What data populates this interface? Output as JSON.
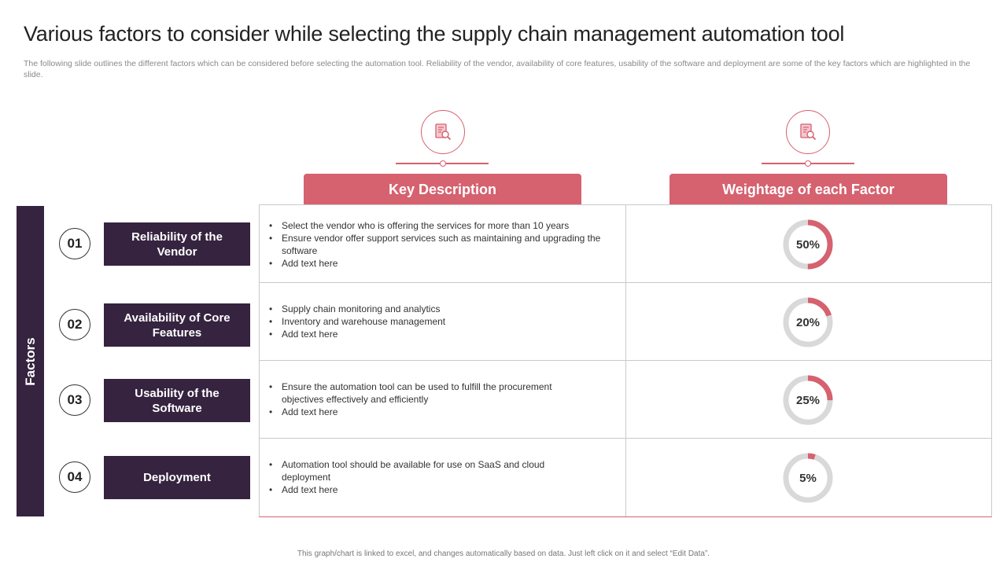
{
  "title": "Various factors to consider while selecting the supply chain management automation tool",
  "subtitle": "The following slide outlines the different factors which can be considered before selecting the automation tool. Reliability of the vendor, availability of core features, usability of the software and deployment are some of the key factors which are highlighted in the slide.",
  "side_label": "Factors",
  "headers": {
    "description": "Key Description",
    "weightage": "Weightage of each Factor",
    "icon": "document-search-icon"
  },
  "colors": {
    "accent": "#d6616f",
    "dark": "#35233f",
    "ring": "#d9d9d9"
  },
  "factors": [
    {
      "number": "01",
      "name": "Reliability of the Vendor",
      "bullets": [
        "Select the vendor  who is offering  the services for more than  10 years",
        "Ensure vendor  offer  support services  such as maintaining and upgrading the software",
        "Add text here"
      ],
      "weight_label": "50%",
      "weight": 50
    },
    {
      "number": "02",
      "name": "Availability of Core Features",
      "bullets": [
        "Supply chain monitoring  and analytics",
        "Inventory  and warehouse  management",
        "Add text here"
      ],
      "weight_label": "20%",
      "weight": 20
    },
    {
      "number": "03",
      "name": "Usability of the Software",
      "bullets": [
        "Ensure the automation tool can be used to fulfill the procurement objectives effectively  and efficiently",
        "Add text here"
      ],
      "weight_label": "25%",
      "weight": 25
    },
    {
      "number": "04",
      "name": "Deployment",
      "bullets": [
        "Automation tool should be available  for use on SaaS and cloud deployment",
        "Add text here"
      ],
      "weight_label": "5%",
      "weight": 5
    }
  ],
  "footer": "This graph/chart is linked to excel, and changes automatically based on data. Just left click on it and select “Edit Data”."
}
